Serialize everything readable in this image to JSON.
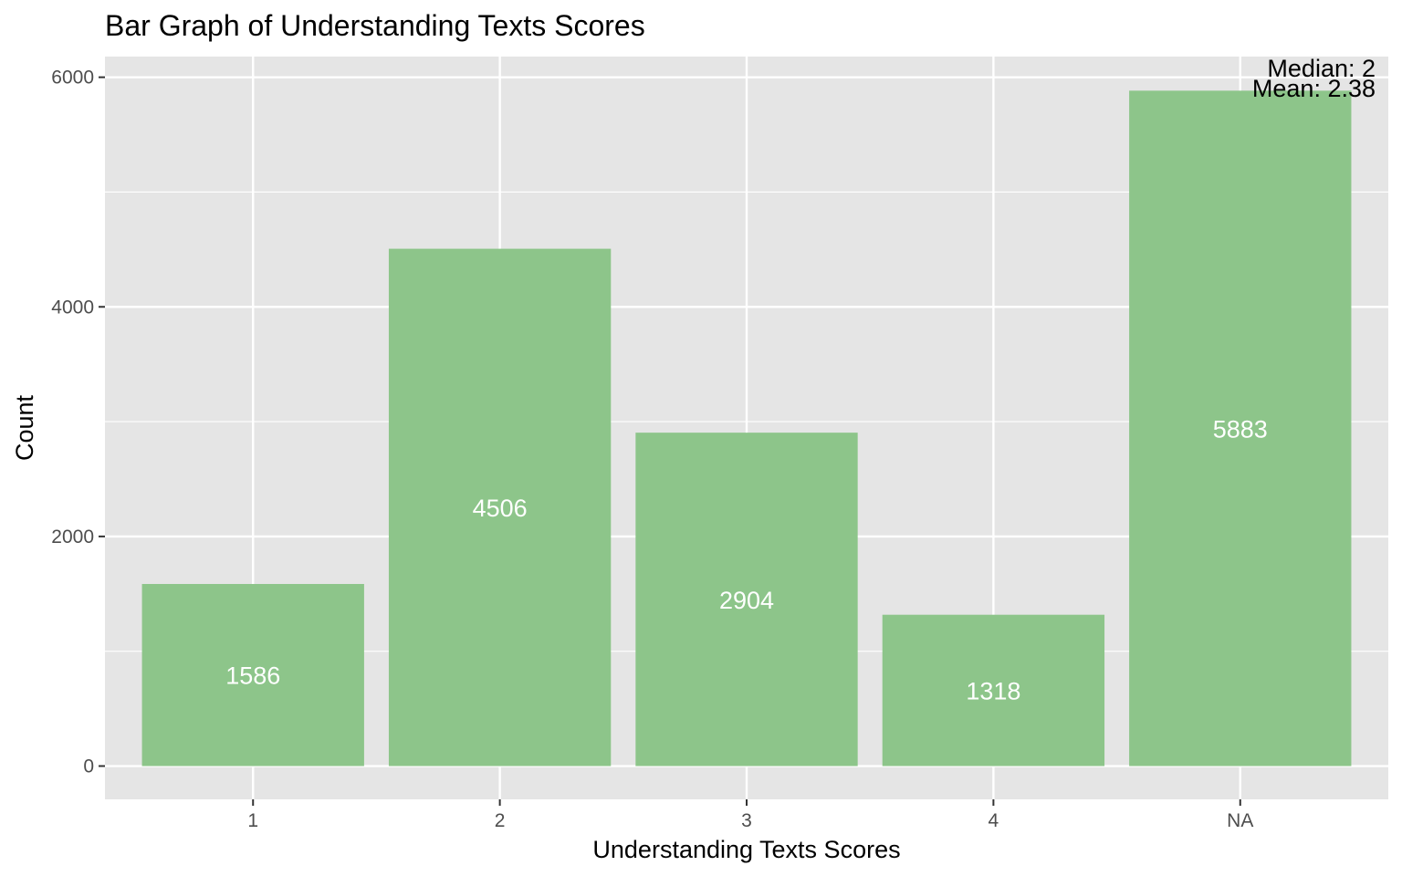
{
  "chart_data": {
    "type": "bar",
    "title": "Bar Graph of Understanding Texts Scores",
    "xlabel": "Understanding Texts Scores",
    "ylabel": "Count",
    "categories": [
      "1",
      "2",
      "3",
      "4",
      "NA"
    ],
    "values": [
      1586,
      4506,
      2904,
      1318,
      5883
    ],
    "data_labels": [
      "1586",
      "4506",
      "2904",
      "1318",
      "5883"
    ],
    "ylim": [
      -290,
      6180
    ],
    "yticks": [
      0,
      2000,
      4000,
      6000
    ],
    "ytick_labels": [
      "0",
      "2000",
      "4000",
      "6000"
    ],
    "grid": true,
    "legend": "none",
    "annotations": [
      "Median: 2",
      "Mean: 2.38"
    ],
    "colors": {
      "bar": "#8dc58a",
      "panel": "#e5e5e5",
      "grid": "#ffffff",
      "bar_label": "#ffffff"
    }
  }
}
